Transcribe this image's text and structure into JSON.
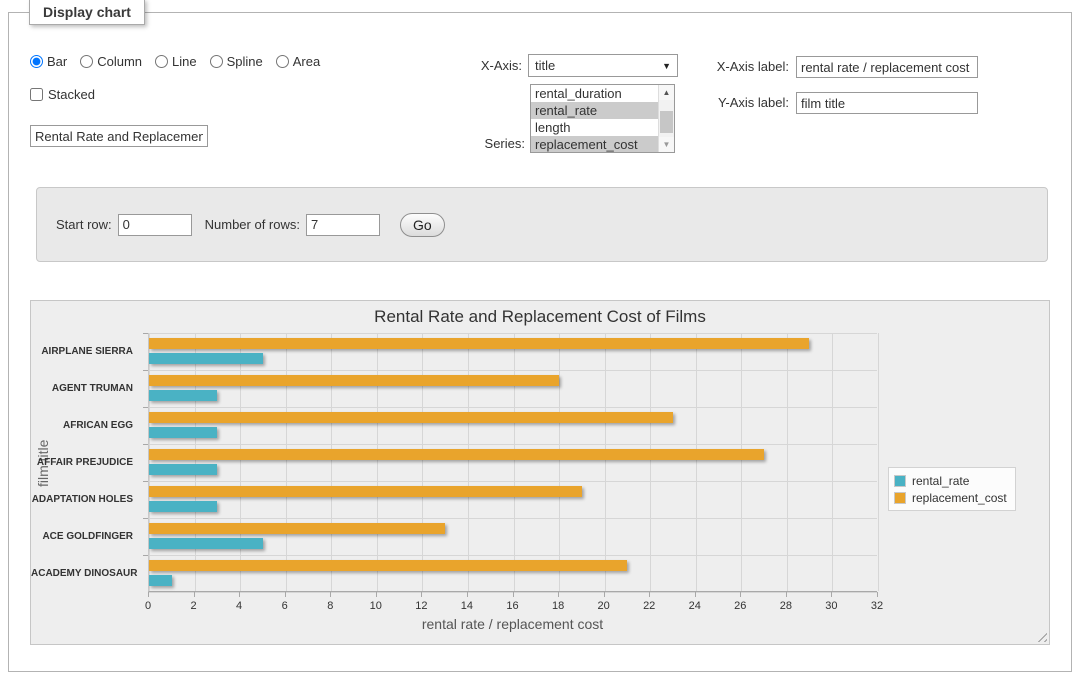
{
  "panel": {
    "legend_title": "Display chart"
  },
  "icons": {
    "dropdown_arrow": "▼",
    "scroll_up": "▲",
    "scroll_down": "▼"
  },
  "chart_type": {
    "options": [
      {
        "label": "Bar",
        "selected": true
      },
      {
        "label": "Column",
        "selected": false
      },
      {
        "label": "Line",
        "selected": false
      },
      {
        "label": "Spline",
        "selected": false
      },
      {
        "label": "Area",
        "selected": false
      }
    ]
  },
  "stacked": {
    "label": "Stacked",
    "checked": false
  },
  "chart_title_input": {
    "value": "Rental Rate and Replacement Cost of Films"
  },
  "x_axis_select": {
    "label": "X-Axis:",
    "value": "title"
  },
  "series_select": {
    "label": "Series:",
    "options": [
      {
        "label": "rental_duration",
        "selected": false
      },
      {
        "label": "rental_rate",
        "selected": true
      },
      {
        "label": "length",
        "selected": false
      },
      {
        "label": "replacement_cost",
        "selected": true
      }
    ]
  },
  "x_axis_label_input": {
    "label": "X-Axis label:",
    "value": "rental rate / replacement cost"
  },
  "y_axis_label_input": {
    "label": "Y-Axis label:",
    "value": "film title"
  },
  "row_form": {
    "start_row_label": "Start row:",
    "start_row_value": "0",
    "rows_label": "Number of rows:",
    "rows_value": "7",
    "go_label": "Go"
  },
  "chart_data": {
    "type": "bar",
    "title": "Rental Rate and Replacement Cost of Films",
    "xlabel": "rental rate / replacement cost",
    "ylabel": "film title",
    "categories": [
      "AIRPLANE SIERRA",
      "AGENT TRUMAN",
      "AFRICAN EGG",
      "AFFAIR PREJUDICE",
      "ADAPTATION HOLES",
      "ACE GOLDFINGER",
      "ACADEMY DINOSAUR"
    ],
    "series": [
      {
        "name": "rental_rate",
        "color": "#4AB2C4",
        "values": [
          4.99,
          2.99,
          2.99,
          2.99,
          2.99,
          4.99,
          0.99
        ]
      },
      {
        "name": "replacement_cost",
        "color": "#E9A42C",
        "values": [
          28.99,
          17.99,
          22.99,
          26.99,
          18.99,
          12.99,
          20.99
        ]
      }
    ],
    "xlim": [
      0,
      32
    ],
    "xticks": [
      0,
      2,
      4,
      6,
      8,
      10,
      12,
      14,
      16,
      18,
      20,
      22,
      24,
      26,
      28,
      30,
      32
    ],
    "grid": true,
    "legend_position": "right",
    "bar_order_top_to_bottom": [
      "replacement_cost",
      "rental_rate"
    ]
  }
}
